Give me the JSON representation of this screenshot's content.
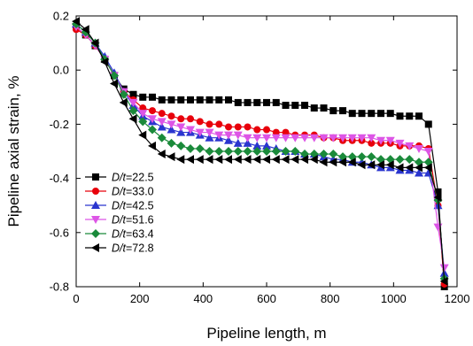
{
  "chart_data": {
    "type": "line",
    "xlabel": "Pipeline length, m",
    "ylabel": "Pipeline axial strain, %",
    "xlim": [
      0,
      1200
    ],
    "ylim": [
      -0.8,
      0.2
    ],
    "x_ticks": [
      "0",
      "200",
      "400",
      "600",
      "800",
      "1000",
      "1200"
    ],
    "y_ticks": [
      "0.2",
      "0.0",
      "-0.2",
      "-0.4",
      "-0.6",
      "-0.8"
    ],
    "grid": false,
    "legend_position": "lower-left",
    "x": [
      0,
      30,
      60,
      90,
      120,
      150,
      180,
      210,
      240,
      270,
      300,
      330,
      360,
      390,
      420,
      450,
      480,
      510,
      540,
      570,
      600,
      630,
      660,
      690,
      720,
      750,
      780,
      810,
      840,
      870,
      900,
      930,
      960,
      990,
      1020,
      1050,
      1080,
      1110,
      1140,
      1160
    ],
    "series": [
      {
        "name": "D/t=22.5",
        "name_italic": "D/t",
        "name_rest": "=22.5",
        "color": "#000000",
        "marker": "square",
        "values": [
          0.16,
          0.13,
          0.09,
          0.04,
          -0.02,
          -0.07,
          -0.09,
          -0.1,
          -0.1,
          -0.11,
          -0.11,
          -0.11,
          -0.11,
          -0.11,
          -0.11,
          -0.11,
          -0.11,
          -0.12,
          -0.12,
          -0.12,
          -0.12,
          -0.12,
          -0.13,
          -0.13,
          -0.13,
          -0.14,
          -0.14,
          -0.15,
          -0.15,
          -0.16,
          -0.16,
          -0.16,
          -0.16,
          -0.16,
          -0.17,
          -0.17,
          -0.17,
          -0.2,
          -0.45,
          -0.8
        ]
      },
      {
        "name": "D/t=33.0",
        "name_italic": "D/t",
        "name_rest": "=33.0",
        "color": "#e8000b",
        "marker": "circle",
        "values": [
          0.15,
          0.13,
          0.09,
          0.04,
          -0.02,
          -0.08,
          -0.11,
          -0.14,
          -0.15,
          -0.16,
          -0.17,
          -0.18,
          -0.18,
          -0.19,
          -0.2,
          -0.2,
          -0.21,
          -0.21,
          -0.21,
          -0.22,
          -0.22,
          -0.23,
          -0.23,
          -0.24,
          -0.24,
          -0.24,
          -0.25,
          -0.25,
          -0.26,
          -0.26,
          -0.26,
          -0.27,
          -0.27,
          -0.27,
          -0.28,
          -0.28,
          -0.28,
          -0.29,
          -0.5,
          -0.79
        ]
      },
      {
        "name": "D/t=42.5",
        "name_italic": "D/t",
        "name_rest": "=42.5",
        "color": "#2a35cf",
        "marker": "triangle-up",
        "values": [
          0.17,
          0.14,
          0.1,
          0.05,
          -0.01,
          -0.08,
          -0.13,
          -0.17,
          -0.19,
          -0.21,
          -0.22,
          -0.23,
          -0.23,
          -0.24,
          -0.25,
          -0.25,
          -0.26,
          -0.27,
          -0.27,
          -0.28,
          -0.28,
          -0.29,
          -0.3,
          -0.3,
          -0.31,
          -0.31,
          -0.32,
          -0.33,
          -0.33,
          -0.34,
          -0.34,
          -0.35,
          -0.36,
          -0.36,
          -0.37,
          -0.37,
          -0.38,
          -0.38,
          -0.5,
          -0.75
        ]
      },
      {
        "name": "D/t=51.6",
        "name_italic": "D/t",
        "name_rest": "=51.6",
        "color": "#dd55e6",
        "marker": "triangle-down",
        "values": [
          0.16,
          0.13,
          0.09,
          0.04,
          -0.02,
          -0.08,
          -0.12,
          -0.16,
          -0.18,
          -0.19,
          -0.2,
          -0.21,
          -0.22,
          -0.23,
          -0.23,
          -0.24,
          -0.24,
          -0.24,
          -0.25,
          -0.25,
          -0.25,
          -0.25,
          -0.25,
          -0.25,
          -0.25,
          -0.25,
          -0.25,
          -0.25,
          -0.25,
          -0.25,
          -0.25,
          -0.25,
          -0.26,
          -0.26,
          -0.27,
          -0.28,
          -0.29,
          -0.3,
          -0.58,
          -0.73
        ]
      },
      {
        "name": "D/t=63.4",
        "name_italic": "D/t",
        "name_rest": "=63.4",
        "color": "#1a8a3a",
        "marker": "diamond",
        "values": [
          0.17,
          0.14,
          0.1,
          0.04,
          -0.02,
          -0.09,
          -0.15,
          -0.19,
          -0.22,
          -0.25,
          -0.27,
          -0.28,
          -0.29,
          -0.29,
          -0.3,
          -0.3,
          -0.3,
          -0.3,
          -0.3,
          -0.3,
          -0.3,
          -0.3,
          -0.3,
          -0.3,
          -0.31,
          -0.31,
          -0.31,
          -0.31,
          -0.32,
          -0.32,
          -0.32,
          -0.32,
          -0.33,
          -0.33,
          -0.33,
          -0.33,
          -0.34,
          -0.34,
          -0.48,
          -0.77
        ]
      },
      {
        "name": "D/t=72.8",
        "name_italic": "D/t",
        "name_rest": "=72.8",
        "color": "#000000",
        "marker": "triangle-left",
        "values": [
          0.18,
          0.15,
          0.1,
          0.03,
          -0.05,
          -0.12,
          -0.18,
          -0.24,
          -0.28,
          -0.31,
          -0.32,
          -0.33,
          -0.33,
          -0.33,
          -0.33,
          -0.33,
          -0.33,
          -0.33,
          -0.33,
          -0.33,
          -0.33,
          -0.33,
          -0.33,
          -0.33,
          -0.33,
          -0.33,
          -0.34,
          -0.34,
          -0.34,
          -0.34,
          -0.35,
          -0.35,
          -0.35,
          -0.35,
          -0.36,
          -0.36,
          -0.36,
          -0.36,
          -0.47,
          -0.78
        ]
      }
    ]
  }
}
